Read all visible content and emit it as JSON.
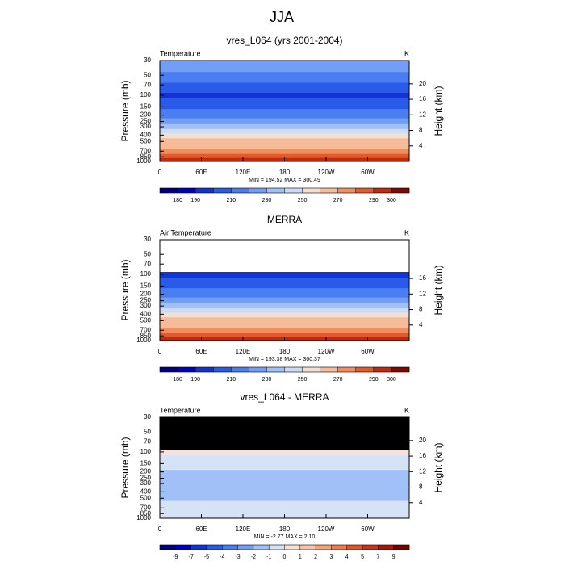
{
  "title": "JJA",
  "chart_data": [
    {
      "type": "contour-profile",
      "title": "vres_L064 (yrs 2001-2004)",
      "left_label": "Temperature",
      "right_label": "K",
      "ylabel": "Pressure (mb)",
      "y2label": "Height (km)",
      "stats": "MIN = 194.52  MAX = 300.49",
      "log_y": true,
      "missing_color": "#ffffff",
      "y": [
        30,
        40,
        50,
        60,
        70,
        85,
        100,
        125,
        150,
        175,
        200,
        250,
        300,
        350,
        400,
        500,
        600,
        700,
        850,
        925,
        1000
      ],
      "values": [
        226,
        222,
        216,
        212,
        208,
        202,
        196,
        200,
        206,
        212,
        218,
        226,
        234,
        242,
        250,
        260,
        268,
        276,
        284,
        290,
        294
      ],
      "xlim": [
        0,
        360
      ],
      "xticks": [
        0,
        {
          "value": 60,
          "label": "60E"
        },
        {
          "value": 120,
          "label": "120E"
        },
        180,
        {
          "value": 240,
          "label": "120W"
        },
        {
          "value": 300,
          "label": "60W"
        }
      ],
      "ylim": [
        1000,
        30
      ],
      "yticks": [
        30,
        50,
        70,
        100,
        150,
        200,
        250,
        300,
        400,
        500,
        700,
        850,
        1000
      ],
      "y2lim": [
        0,
        26
      ],
      "y2ticks": [
        4,
        8,
        12,
        16,
        20
      ],
      "levels": [
        180,
        190,
        200,
        210,
        220,
        230,
        240,
        250,
        260,
        270,
        280,
        290,
        300
      ],
      "colors": [
        "#00007f",
        "#0000c0",
        "#1233d6",
        "#2a5ae8",
        "#4a7cf2",
        "#739ef6",
        "#a0c0f7",
        "#cadbf5",
        "#f3dfd2",
        "#f6bb98",
        "#f38d5e",
        "#e55a2c",
        "#c22a0e",
        "#800800"
      ],
      "colorbar_labels": [
        180,
        190,
        210,
        230,
        250,
        270,
        290,
        300
      ]
    },
    {
      "type": "contour-profile",
      "title": "MERRA",
      "left_label": "Air Temperature",
      "right_label": "K",
      "ylabel": "Pressure (mb)",
      "y2label": "Height (km)",
      "stats": "MIN = 193.38  MAX = 300.37",
      "log_y": true,
      "missing_color": "#ffffff",
      "y": [
        30,
        40,
        50,
        60,
        70,
        85,
        100,
        125,
        150,
        175,
        200,
        250,
        300,
        350,
        400,
        500,
        600,
        700,
        850,
        925,
        1000
      ],
      "values": [
        null,
        null,
        null,
        null,
        null,
        null,
        196,
        201,
        207,
        213,
        219,
        227,
        235,
        243,
        251,
        261,
        269,
        277,
        285,
        290,
        295
      ],
      "xlim": [
        0,
        360
      ],
      "xticks": [
        0,
        {
          "value": 60,
          "label": "60E"
        },
        {
          "value": 120,
          "label": "120E"
        },
        180,
        {
          "value": 240,
          "label": "120W"
        },
        {
          "value": 300,
          "label": "60W"
        }
      ],
      "ylim": [
        1000,
        30
      ],
      "yticks": [
        30,
        50,
        70,
        100,
        150,
        200,
        250,
        300,
        400,
        500,
        700,
        850,
        1000
      ],
      "y2lim": [
        0,
        26
      ],
      "y2ticks": [
        4,
        8,
        12,
        16
      ],
      "levels": [
        180,
        190,
        200,
        210,
        220,
        230,
        240,
        250,
        260,
        270,
        280,
        290,
        300
      ],
      "colors": [
        "#00007f",
        "#0000c0",
        "#1233d6",
        "#2a5ae8",
        "#4a7cf2",
        "#739ef6",
        "#a0c0f7",
        "#cadbf5",
        "#f3dfd2",
        "#f6bb98",
        "#f38d5e",
        "#e55a2c",
        "#c22a0e",
        "#800800"
      ],
      "colorbar_labels": [
        180,
        190,
        210,
        230,
        250,
        270,
        290,
        300
      ]
    },
    {
      "type": "contour-profile",
      "title": "vres_L064 - MERRA",
      "left_label": "Temperature",
      "right_label": "K",
      "ylabel": "Pressure (mb)",
      "y2label": "Height (km)",
      "stats": "MIN =  -2.77  MAX =   2.10",
      "log_y": true,
      "missing_color": "#000000",
      "y": [
        30,
        40,
        50,
        60,
        70,
        85,
        100,
        125,
        150,
        175,
        200,
        250,
        300,
        350,
        400,
        500,
        600,
        700,
        850,
        925,
        1000
      ],
      "values": [
        null,
        null,
        null,
        null,
        null,
        null,
        0.3,
        -0.5,
        -0.8,
        -0.5,
        -1.2,
        -1.5,
        -1.3,
        -1.5,
        -1.4,
        -1.2,
        -0.6,
        -0.4,
        -0.5,
        -0.7,
        -0.6
      ],
      "xlim": [
        0,
        360
      ],
      "xticks": [
        0,
        {
          "value": 60,
          "label": "60E"
        },
        {
          "value": 120,
          "label": "120E"
        },
        180,
        {
          "value": 240,
          "label": "120W"
        },
        {
          "value": 300,
          "label": "60W"
        }
      ],
      "ylim": [
        1000,
        30
      ],
      "yticks": [
        30,
        50,
        70,
        100,
        150,
        200,
        250,
        300,
        400,
        500,
        700,
        850,
        1000
      ],
      "y2lim": [
        0,
        26
      ],
      "y2ticks": [
        4,
        8,
        12,
        16,
        20
      ],
      "levels": [
        -9,
        -7,
        -5,
        -4,
        -3,
        -2,
        -1,
        0,
        1,
        2,
        3,
        4,
        5,
        7,
        9
      ],
      "colors": [
        "#00007f",
        "#0000c0",
        "#1233d6",
        "#2a5ae8",
        "#4a7cf2",
        "#739ef6",
        "#a0c0f7",
        "#d6e3f6",
        "#f6e2d6",
        "#f6c4a6",
        "#f5a27a",
        "#ee7a50",
        "#e0552e",
        "#c8341a",
        "#a5170a",
        "#700500"
      ],
      "colorbar_labels": [
        -9,
        -7,
        -5,
        -4,
        -3,
        -2,
        -1,
        0,
        1,
        2,
        3,
        4,
        5,
        7,
        9
      ]
    }
  ]
}
